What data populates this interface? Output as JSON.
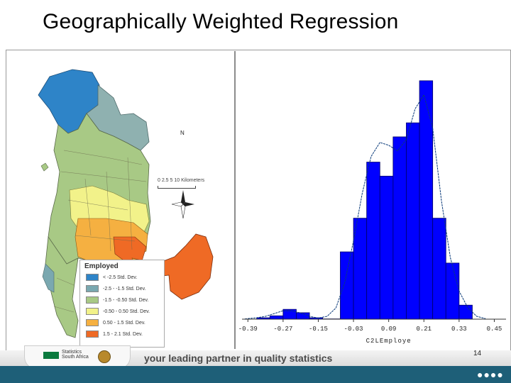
{
  "slide": {
    "title": "Geographically Weighted Regression",
    "tagline": "your leading partner in quality statistics",
    "page_number": "14"
  },
  "map": {
    "compass": "N",
    "scale_text": "0 2.5 5       10 Kilometers",
    "legend": {
      "title": "Employed",
      "items": [
        {
          "label": "< -2.5 Std. Dev.",
          "color": "#2e84c8"
        },
        {
          "label": "-2.5 - -1.5 Std. Dev.",
          "color": "#7aa8b0"
        },
        {
          "label": "-1.5 - -0.50 Std. Dev.",
          "color": "#a8c985"
        },
        {
          "label": "-0.50 - 0.50 Std. Dev.",
          "color": "#f2f28a"
        },
        {
          "label": "0.50 - 1.5 Std. Dev.",
          "color": "#f5b041"
        },
        {
          "label": "1.5 - 2.1 Std. Dev.",
          "color": "#ef6a25"
        }
      ]
    }
  },
  "logo": {
    "line1": "Statistics",
    "line2": "South Africa"
  },
  "chart_data": {
    "type": "bar",
    "xlabel": "C2LEmploye",
    "x_ticks": [
      "-0.39",
      "-0.27",
      "-0.15",
      "-0.03",
      "0.09",
      "0.21",
      "0.33",
      "0.45"
    ],
    "x_tick_values": [
      -0.39,
      -0.27,
      -0.15,
      -0.03,
      0.09,
      0.21,
      0.33,
      0.45
    ],
    "bins": [
      {
        "x0": -0.36,
        "x1": -0.315,
        "value": 0.5
      },
      {
        "x0": -0.315,
        "x1": -0.27,
        "value": 1.2
      },
      {
        "x0": -0.27,
        "x1": -0.225,
        "value": 3.5
      },
      {
        "x0": -0.225,
        "x1": -0.18,
        "value": 2.3
      },
      {
        "x0": -0.18,
        "x1": -0.135,
        "value": 0.5
      },
      {
        "x0": -0.135,
        "x1": -0.075,
        "value": 0.1
      },
      {
        "x0": -0.075,
        "x1": -0.03,
        "value": 24
      },
      {
        "x0": -0.03,
        "x1": 0.015,
        "value": 36
      },
      {
        "x0": 0.015,
        "x1": 0.06,
        "value": 56
      },
      {
        "x0": 0.06,
        "x1": 0.105,
        "value": 51
      },
      {
        "x0": 0.105,
        "x1": 0.15,
        "value": 65
      },
      {
        "x0": 0.15,
        "x1": 0.195,
        "value": 70
      },
      {
        "x0": 0.195,
        "x1": 0.24,
        "value": 85
      },
      {
        "x0": 0.24,
        "x1": 0.285,
        "value": 36
      },
      {
        "x0": 0.285,
        "x1": 0.33,
        "value": 20
      },
      {
        "x0": 0.33,
        "x1": 0.375,
        "value": 5
      }
    ],
    "density_curve": {
      "x": [
        -0.4,
        -0.36,
        -0.33,
        -0.3,
        -0.27,
        -0.24,
        -0.21,
        -0.18,
        -0.15,
        -0.12,
        -0.09,
        -0.06,
        -0.03,
        0.0,
        0.03,
        0.06,
        0.09,
        0.12,
        0.15,
        0.18,
        0.21,
        0.24,
        0.27,
        0.3,
        0.33,
        0.36,
        0.39,
        0.42
      ],
      "y": [
        0.1,
        0.5,
        1.0,
        2.0,
        3.0,
        3.0,
        2.2,
        1.0,
        0.4,
        1.0,
        4.0,
        13,
        28,
        45,
        58,
        63,
        62,
        60,
        64,
        75,
        80,
        68,
        42,
        22,
        10,
        4,
        1,
        0.2
      ]
    },
    "xlim": [
      -0.41,
      0.49
    ],
    "ylim": [
      0,
      88
    ],
    "bar_color": "#0000ff",
    "bar_edge": "#000066",
    "curve_color": "#0a3a7a"
  }
}
